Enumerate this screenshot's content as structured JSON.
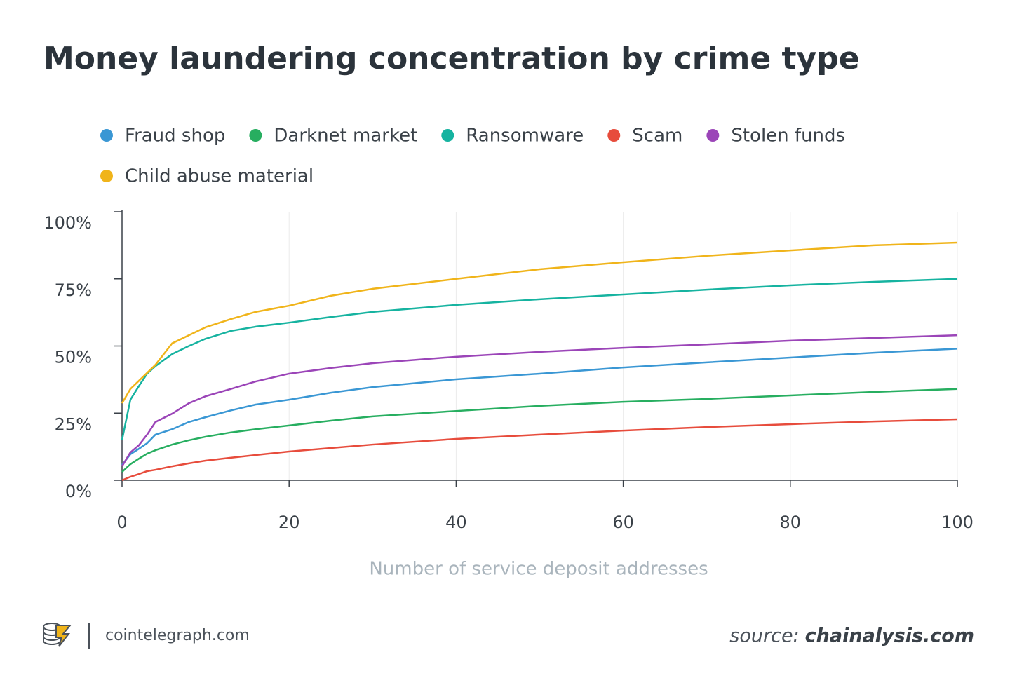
{
  "chart_data": {
    "type": "line",
    "title": "Money laundering concentration by crime type",
    "x_label": "Number of service deposit addresses",
    "x": [
      0,
      1,
      2,
      3,
      4,
      6,
      8,
      10,
      13,
      16,
      20,
      25,
      30,
      40,
      50,
      60,
      70,
      80,
      90,
      100
    ],
    "series": [
      {
        "name": "Fraud shop",
        "color": "#3a97d4",
        "values": [
          5.7,
          9.7,
          11.7,
          13.8,
          17,
          19,
          21.7,
          23.5,
          26,
          28.2,
          30,
          32.6,
          34.7,
          37.6,
          39.7,
          42,
          43.9,
          45.7,
          47.5,
          49
        ]
      },
      {
        "name": "Darknet market",
        "color": "#27ae60",
        "values": [
          3.1,
          6,
          8,
          9.9,
          11.2,
          13.3,
          14.9,
          16.2,
          17.8,
          19,
          20.4,
          22.2,
          23.8,
          25.8,
          27.7,
          29.2,
          30.3,
          31.6,
          32.9,
          34
        ]
      },
      {
        "name": "Ransomware",
        "color": "#16b3a0",
        "values": [
          15,
          30,
          35,
          39.7,
          42.5,
          47,
          50,
          52.7,
          55.6,
          57.2,
          58.7,
          60.8,
          62.7,
          65.3,
          67.4,
          69.2,
          71,
          72.6,
          73.9,
          75
        ]
      },
      {
        "name": "Scam",
        "color": "#e74c3c",
        "values": [
          0,
          1.3,
          2.3,
          3.4,
          3.9,
          5.2,
          6.3,
          7.3,
          8.4,
          9.4,
          10.7,
          12,
          13.3,
          15.4,
          17,
          18.5,
          19.8,
          20.9,
          21.9,
          22.7
        ]
      },
      {
        "name": "Stolen funds",
        "color": "#9b45b8",
        "values": [
          5.2,
          10.4,
          13,
          17,
          21.7,
          24.8,
          28.7,
          31.3,
          34,
          36.8,
          39.7,
          41.8,
          43.6,
          46,
          47.8,
          49.3,
          50.6,
          52,
          53,
          54
        ]
      },
      {
        "name": "Child abuse material",
        "color": "#f0b41a",
        "values": [
          28.7,
          34,
          37,
          40,
          43,
          51,
          54,
          57,
          60,
          62.7,
          65,
          68.7,
          71.3,
          75,
          78.6,
          81.2,
          83.6,
          85.6,
          87.5,
          88.5
        ]
      }
    ],
    "xlim": [
      0,
      100
    ],
    "xticks": [
      0,
      20,
      40,
      60,
      80,
      100
    ],
    "ylim": [
      0,
      100
    ],
    "yticks": [
      {
        "value": 0,
        "label": "0%"
      },
      {
        "value": 25,
        "label": "25%"
      },
      {
        "value": 50,
        "label": "50%"
      },
      {
        "value": 75,
        "label": "75%"
      },
      {
        "value": 100,
        "label": "100%"
      }
    ],
    "grid": "x"
  },
  "footer": {
    "site": "cointelegraph.com",
    "source_label": "source:",
    "source_name": "chainalysis.com"
  }
}
